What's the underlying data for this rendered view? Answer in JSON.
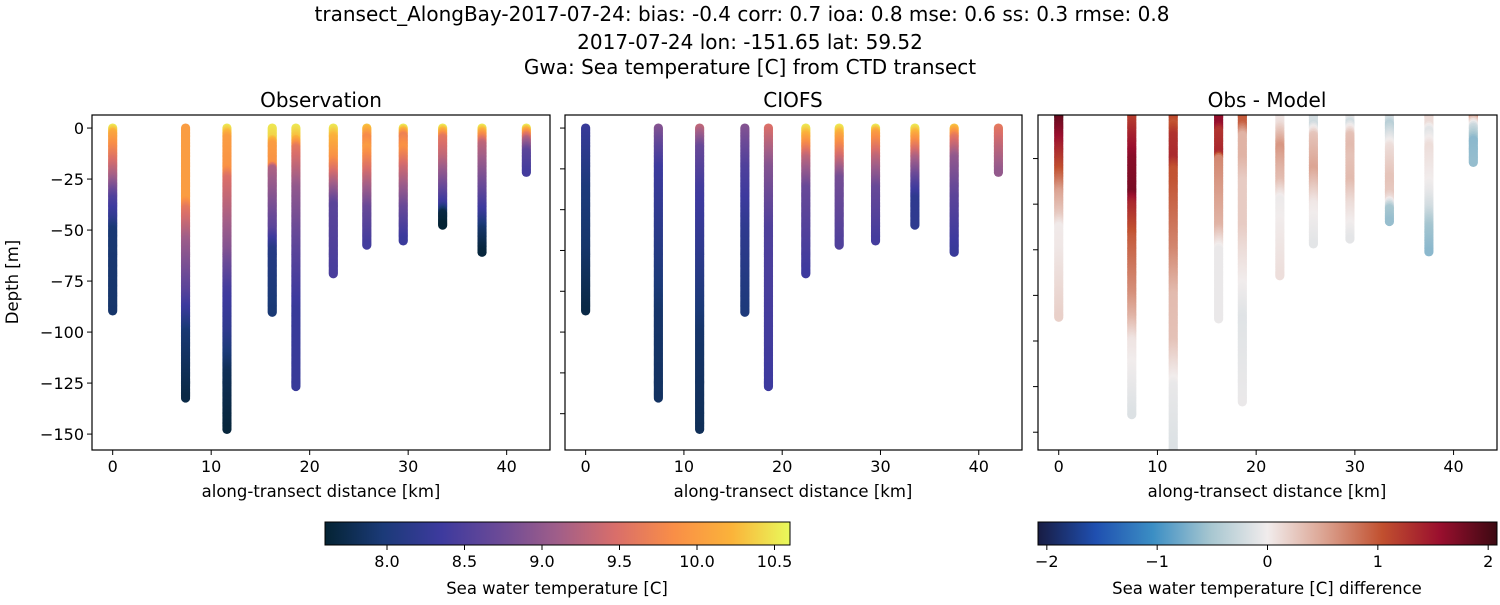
{
  "title": {
    "line1": "transect_AlongBay-2017-07-24: bias: -0.4  corr: 0.7  ioa: 0.8  mse: 0.6  ss: 0.3  rmse: 0.8",
    "line2": "2017-07-24 lon: -151.65 lat: 59.52",
    "line3": "Gwa: Sea temperature [C] from CTD transect"
  },
  "chart_data": [
    {
      "type": "scatter",
      "title": "Observation",
      "xlabel": "along-transect distance [km]",
      "ylabel": "Depth [m]",
      "xlim": [
        -2.1,
        44.4
      ],
      "ylim": [
        -157.8,
        6.4
      ],
      "xticks": [
        0,
        10,
        20,
        30,
        40
      ],
      "yticks": [
        0,
        -25,
        -50,
        -75,
        -100,
        -125,
        -150
      ],
      "ytick_labels_shown": true,
      "colormap": "thermal",
      "profiles": [
        {
          "x": 0.0,
          "max_depth": 90,
          "temp": [
            [
              0,
              10.5
            ],
            [
              3,
              10.1
            ],
            [
              10,
              9.8
            ],
            [
              25,
              9.1
            ],
            [
              35,
              8.5
            ],
            [
              45,
              8.2
            ],
            [
              50,
              7.95
            ],
            [
              90,
              7.9
            ]
          ]
        },
        {
          "x": 7.4,
          "max_depth": 133,
          "temp": [
            [
              0,
              10.0
            ],
            [
              35,
              10.0
            ],
            [
              40,
              9.6
            ],
            [
              55,
              9.1
            ],
            [
              80,
              8.6
            ],
            [
              90,
              8.3
            ],
            [
              100,
              7.95
            ],
            [
              120,
              7.8
            ],
            [
              133,
              7.7
            ]
          ]
        },
        {
          "x": 11.6,
          "max_depth": 148,
          "temp": [
            [
              0,
              10.5
            ],
            [
              5,
              10.0
            ],
            [
              20,
              9.9
            ],
            [
              25,
              9.5
            ],
            [
              60,
              8.9
            ],
            [
              80,
              8.4
            ],
            [
              100,
              8.2
            ],
            [
              120,
              7.8
            ],
            [
              148,
              7.65
            ]
          ]
        },
        {
          "x": 16.2,
          "max_depth": 91,
          "temp": [
            [
              0,
              10.5
            ],
            [
              5,
              10.4
            ],
            [
              8,
              10.0
            ],
            [
              18,
              9.9
            ],
            [
              20,
              9.2
            ],
            [
              50,
              8.6
            ],
            [
              60,
              8.1
            ],
            [
              91,
              7.95
            ]
          ]
        },
        {
          "x": 18.6,
          "max_depth": 127,
          "temp": [
            [
              0,
              10.5
            ],
            [
              5,
              10.3
            ],
            [
              10,
              9.6
            ],
            [
              30,
              9.0
            ],
            [
              60,
              8.6
            ],
            [
              90,
              8.3
            ],
            [
              127,
              8.3
            ]
          ]
        },
        {
          "x": 22.4,
          "max_depth": 72,
          "temp": [
            [
              0,
              10.5
            ],
            [
              5,
              10.2
            ],
            [
              15,
              9.9
            ],
            [
              25,
              9.3
            ],
            [
              38,
              8.6
            ],
            [
              72,
              8.45
            ]
          ]
        },
        {
          "x": 25.8,
          "max_depth": 58,
          "temp": [
            [
              0,
              10.3
            ],
            [
              5,
              9.8
            ],
            [
              10,
              10.0
            ],
            [
              25,
              9.3
            ],
            [
              40,
              8.7
            ],
            [
              58,
              8.4
            ]
          ]
        },
        {
          "x": 29.5,
          "max_depth": 56,
          "temp": [
            [
              0,
              10.5
            ],
            [
              4,
              9.7
            ],
            [
              10,
              9.9
            ],
            [
              20,
              9.4
            ],
            [
              40,
              8.7
            ],
            [
              56,
              8.3
            ]
          ]
        },
        {
          "x": 33.5,
          "max_depth": 48,
          "temp": [
            [
              0,
              10.5
            ],
            [
              5,
              9.6
            ],
            [
              15,
              9.3
            ],
            [
              30,
              8.7
            ],
            [
              38,
              8.3
            ],
            [
              42,
              7.7
            ],
            [
              48,
              7.6
            ]
          ]
        },
        {
          "x": 37.5,
          "max_depth": 61,
          "temp": [
            [
              0,
              10.5
            ],
            [
              3,
              10.0
            ],
            [
              8,
              9.3
            ],
            [
              30,
              8.7
            ],
            [
              42,
              8.3
            ],
            [
              50,
              7.9
            ],
            [
              61,
              7.65
            ]
          ]
        },
        {
          "x": 42.0,
          "max_depth": 22,
          "temp": [
            [
              0,
              10.5
            ],
            [
              3,
              9.8
            ],
            [
              6,
              9.2
            ],
            [
              12,
              8.6
            ],
            [
              22,
              8.4
            ]
          ]
        }
      ]
    },
    {
      "type": "scatter",
      "title": "CIOFS",
      "xlabel": "along-transect distance [km]",
      "xlim": [
        -2.1,
        44.4
      ],
      "ylim": [
        -157.8,
        6.4
      ],
      "xticks": [
        0,
        10,
        20,
        30,
        40
      ],
      "yticks": [
        0,
        -20,
        -40,
        -60,
        -80,
        -100,
        -120,
        -140
      ],
      "ytick_labels_shown": false,
      "colormap": "thermal",
      "profiles": [
        {
          "x": 0.0,
          "max_depth": 90,
          "temp": [
            [
              0,
              8.3
            ],
            [
              30,
              8.0
            ],
            [
              60,
              7.9
            ],
            [
              90,
              7.7
            ]
          ]
        },
        {
          "x": 7.4,
          "max_depth": 133,
          "temp": [
            [
              0,
              8.9
            ],
            [
              10,
              8.6
            ],
            [
              20,
              8.35
            ],
            [
              60,
              8.1
            ],
            [
              90,
              7.9
            ],
            [
              133,
              7.85
            ]
          ]
        },
        {
          "x": 11.6,
          "max_depth": 148,
          "temp": [
            [
              0,
              9.3
            ],
            [
              10,
              8.7
            ],
            [
              30,
              8.4
            ],
            [
              60,
              8.2
            ],
            [
              100,
              7.9
            ],
            [
              148,
              7.8
            ]
          ]
        },
        {
          "x": 16.2,
          "max_depth": 91,
          "temp": [
            [
              0,
              8.9
            ],
            [
              20,
              8.5
            ],
            [
              50,
              8.2
            ],
            [
              91,
              8.0
            ]
          ]
        },
        {
          "x": 18.6,
          "max_depth": 127,
          "temp": [
            [
              0,
              9.5
            ],
            [
              20,
              8.9
            ],
            [
              50,
              8.5
            ],
            [
              127,
              8.35
            ]
          ]
        },
        {
          "x": 22.4,
          "max_depth": 72,
          "temp": [
            [
              0,
              10.5
            ],
            [
              5,
              10.1
            ],
            [
              15,
              9.3
            ],
            [
              30,
              8.7
            ],
            [
              72,
              8.35
            ]
          ]
        },
        {
          "x": 25.8,
          "max_depth": 58,
          "temp": [
            [
              0,
              10.5
            ],
            [
              4,
              10.1
            ],
            [
              12,
              9.6
            ],
            [
              25,
              8.8
            ],
            [
              58,
              8.5
            ]
          ]
        },
        {
          "x": 29.5,
          "max_depth": 56,
          "temp": [
            [
              0,
              10.5
            ],
            [
              3,
              10.0
            ],
            [
              15,
              9.3
            ],
            [
              30,
              8.7
            ],
            [
              56,
              8.4
            ]
          ]
        },
        {
          "x": 33.5,
          "max_depth": 48,
          "temp": [
            [
              0,
              10.5
            ],
            [
              5,
              10.0
            ],
            [
              15,
              9.2
            ],
            [
              28,
              8.5
            ],
            [
              35,
              8.2
            ],
            [
              48,
              8.2
            ]
          ]
        },
        {
          "x": 37.5,
          "max_depth": 61,
          "temp": [
            [
              0,
              10.3
            ],
            [
              5,
              9.6
            ],
            [
              15,
              9.0
            ],
            [
              35,
              8.6
            ],
            [
              61,
              8.3
            ]
          ]
        },
        {
          "x": 42.0,
          "max_depth": 22,
          "temp": [
            [
              0,
              9.6
            ],
            [
              10,
              9.3
            ],
            [
              22,
              9.0
            ]
          ]
        }
      ]
    },
    {
      "type": "scatter",
      "title": "Obs - Model",
      "xlabel": "along-transect distance [km]",
      "xlim": [
        -2.1,
        44.4
      ],
      "ylim": [
        -147.8,
        -0.9
      ],
      "xticks": [
        0,
        10,
        20,
        30,
        40
      ],
      "yticks": [
        -20,
        -40,
        -60,
        -80,
        -100,
        -120,
        -140
      ],
      "ytick_labels_shown": false,
      "colormap": "balance",
      "values": "Observation minus CIOFS at each depth"
    }
  ],
  "colorbars": [
    {
      "label": "Sea water temperature [C]",
      "range": [
        7.6,
        10.6
      ],
      "ticks": [
        8.0,
        8.5,
        9.0,
        9.5,
        10.0,
        10.5
      ],
      "tick_labels": [
        "8.0",
        "8.5",
        "9.0",
        "9.5",
        "10.0",
        "10.5"
      ],
      "colormap": "thermal"
    },
    {
      "label": "Sea water temperature [C] difference",
      "range": [
        -2.08,
        2.08
      ],
      "ticks": [
        -2,
        -1,
        0,
        1,
        2
      ],
      "tick_labels": [
        "−2",
        "−1",
        "0",
        "1",
        "2"
      ],
      "colormap": "balance"
    }
  ],
  "colors": {
    "thermal": [
      "#042333",
      "#1b3a78",
      "#3d3a9e",
      "#6b4a97",
      "#a05e89",
      "#d96e6a",
      "#f98e47",
      "#fbb33a",
      "#e8fa5b"
    ],
    "balance": [
      "#181c43",
      "#1f4fb0",
      "#3b8ec4",
      "#a6c6d0",
      "#f1ecec",
      "#dba290",
      "#c1502f",
      "#9a0f2e",
      "#3c0912"
    ]
  }
}
